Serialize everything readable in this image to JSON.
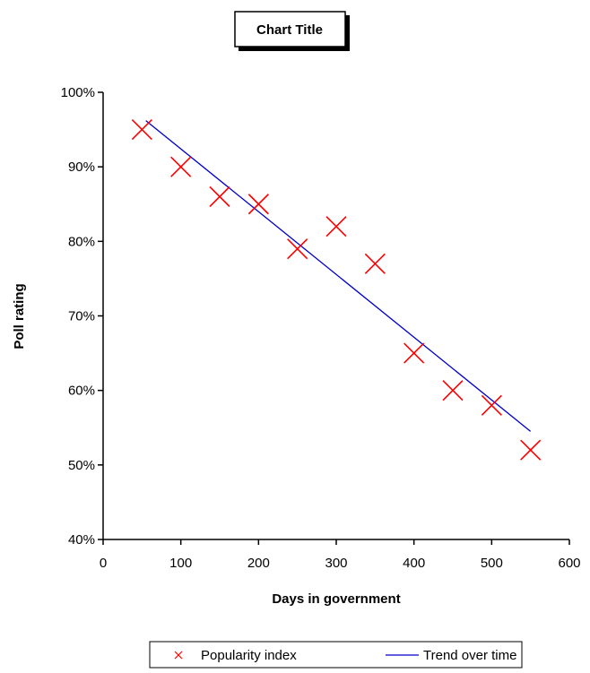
{
  "chart_data": {
    "type": "scatter",
    "title": "Chart Title",
    "xlabel": "Days in government",
    "ylabel": "Poll rating",
    "xlim": [
      0,
      600
    ],
    "ylim": [
      0.4,
      1.0
    ],
    "x_ticks": [
      "0",
      "100",
      "200",
      "300",
      "400",
      "500",
      "600"
    ],
    "y_ticks": [
      "40%",
      "50%",
      "60%",
      "70%",
      "80%",
      "90%",
      "100%"
    ],
    "grid": false,
    "legend_position": "bottom",
    "series": [
      {
        "name": "Popularity index",
        "kind": "scatter",
        "marker": "x",
        "color": "#ff0000",
        "x": [
          50,
          100,
          150,
          200,
          250,
          300,
          350,
          400,
          450,
          500,
          550
        ],
        "y": [
          0.95,
          0.9,
          0.86,
          0.85,
          0.79,
          0.82,
          0.77,
          0.65,
          0.6,
          0.58,
          0.52
        ]
      },
      {
        "name": "Trend over time",
        "kind": "line",
        "color": "#0000cc",
        "x": [
          55,
          550
        ],
        "y": [
          0.962,
          0.545
        ]
      }
    ]
  }
}
